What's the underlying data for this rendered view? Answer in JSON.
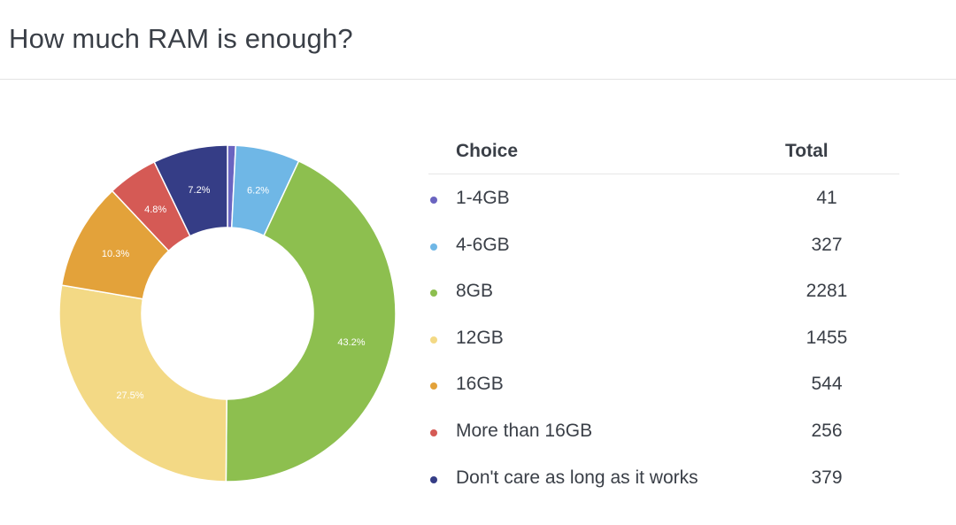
{
  "page": {
    "title": "How much RAM is enough?"
  },
  "table": {
    "headers": {
      "choice": "Choice",
      "total": "Total"
    }
  },
  "chart_data": {
    "type": "pie",
    "donut": true,
    "title": "How much RAM is enough?",
    "categories": [
      "1-4GB",
      "4-6GB",
      "8GB",
      "12GB",
      "16GB",
      "More than 16GB",
      "Don't care as long as it works"
    ],
    "values": [
      41,
      327,
      2281,
      1455,
      544,
      256,
      379
    ],
    "percent_labels": [
      "",
      "6.2%",
      "43.2%",
      "27.5%",
      "10.3%",
      "4.8%",
      "7.2%"
    ],
    "colors": [
      "#6a64c0",
      "#6fb7e6",
      "#8dbf4f",
      "#f3d985",
      "#e3a23a",
      "#d55a55",
      "#353d86"
    ],
    "start_angle": "top",
    "direction": "clockwise"
  }
}
